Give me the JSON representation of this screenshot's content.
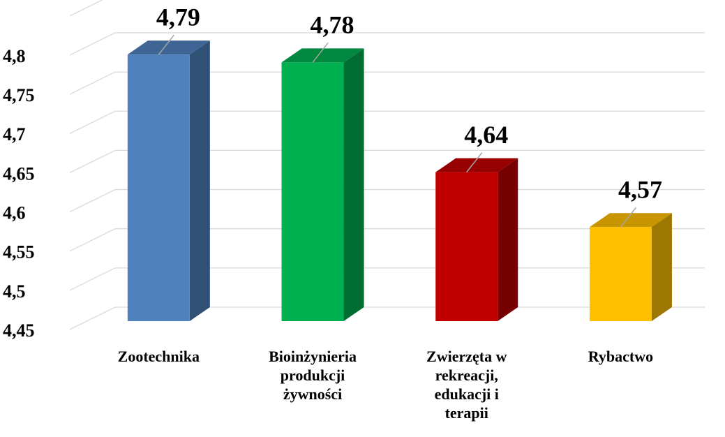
{
  "chart_data": {
    "type": "bar3d",
    "categories": [
      "Zootechnika",
      "Bioinżynieria produkcji żywności",
      "Zwierzęta w rekreacji, edukacji i terapii",
      "Rybactwo"
    ],
    "values": [
      4.79,
      4.78,
      4.64,
      4.57
    ],
    "value_labels": [
      "4,79",
      "4,78",
      "4,64",
      "4,57"
    ],
    "colors": [
      "#4f81bd",
      "#00b050",
      "#c00000",
      "#ffc000"
    ],
    "ylim": [
      4.45,
      4.85
    ],
    "yticks": [
      {
        "value": 4.45,
        "label": "4,45"
      },
      {
        "value": 4.5,
        "label": "4,5"
      },
      {
        "value": 4.55,
        "label": "4,55"
      },
      {
        "value": 4.6,
        "label": "4,6"
      },
      {
        "value": 4.65,
        "label": "4,65"
      },
      {
        "value": 4.7,
        "label": "4,7"
      },
      {
        "value": 4.75,
        "label": "4,75"
      },
      {
        "value": 4.8,
        "label": "4,8"
      }
    ],
    "grid": true
  }
}
